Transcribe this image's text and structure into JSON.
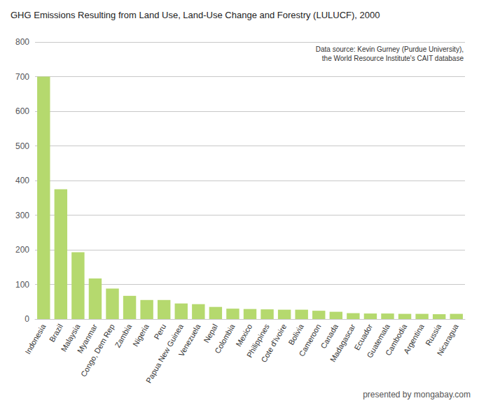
{
  "chart_data": {
    "type": "bar",
    "title": "GHG Emissions Resulting from Land Use, Land-Use Change and Forestry (LULUCF), 2000",
    "categories": [
      "Indonesia",
      "Brazil",
      "Malaysia",
      "Myanmar",
      "Congo, Dem Rep",
      "Zambia",
      "Nigeria",
      "Peru",
      "Papua New Guinea",
      "Venezuela",
      "Nepal",
      "Colombia",
      "Mexico",
      "Philippines",
      "Cote d'Ivoire",
      "Bolivia",
      "Cameroon",
      "Canada",
      "Madagascar",
      "Ecuador",
      "Guatemala",
      "Cambodia",
      "Argentina",
      "Russia",
      "Nicaragua"
    ],
    "values": [
      700,
      375,
      193,
      117,
      88,
      67,
      55,
      55,
      45,
      43,
      35,
      30,
      29,
      28,
      27,
      27,
      24,
      21,
      17,
      16,
      16,
      15,
      15,
      14,
      15
    ],
    "color": "#b5d96e",
    "ylim": [
      0,
      800
    ],
    "yticks": [
      0,
      100,
      200,
      300,
      400,
      500,
      600,
      700,
      800
    ],
    "grid": true,
    "annotations": [
      "Data source: Kevin Gurney (Purdue University),\nthe World Resource Institute's CAIT database",
      "presented by mongabay.com"
    ]
  }
}
